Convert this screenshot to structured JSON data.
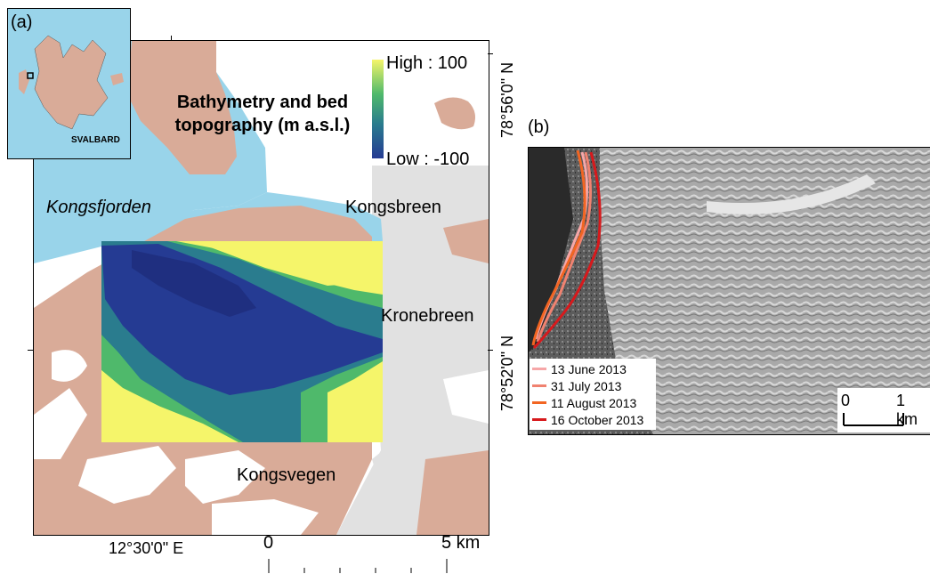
{
  "panel_a": {
    "label": "(a)",
    "inset_label": "SVALBARD",
    "title_line1": "Bathymetry and bed",
    "title_line2": "topography (m a.s.l.)",
    "colorbar_high": "High : 100",
    "colorbar_low": "Low : -100",
    "colorbar_colors": [
      "#f5f56a",
      "#4fb96b",
      "#2a7c8e",
      "#253b93"
    ],
    "place_labels": {
      "fjord": "Kongsfjorden",
      "kongsbreen": "Kongsbreen",
      "kronebreen": "Kronebreen",
      "kongsvegen": "Kongsvegen"
    },
    "lat_top": "78°56'0\" N",
    "lat_bottom": "78°52'0\" N",
    "lon_label": "12°30'0\" E",
    "scale_start": "0",
    "scale_end": "5 km",
    "colors": {
      "water": "#99d4ea",
      "land": "#d9ab98",
      "glacier": "#e1e1e1"
    }
  },
  "panel_b": {
    "label": "(b)",
    "legend": [
      {
        "label": "13 June 2013",
        "color": "#f6a7a8"
      },
      {
        "label": "31 July 2013",
        "color": "#f08270"
      },
      {
        "label": "11 August 2013",
        "color": "#f26522"
      },
      {
        "label": "16 October 2013",
        "color": "#d7191c"
      }
    ],
    "scale_start": "0",
    "scale_end": "1 km"
  }
}
